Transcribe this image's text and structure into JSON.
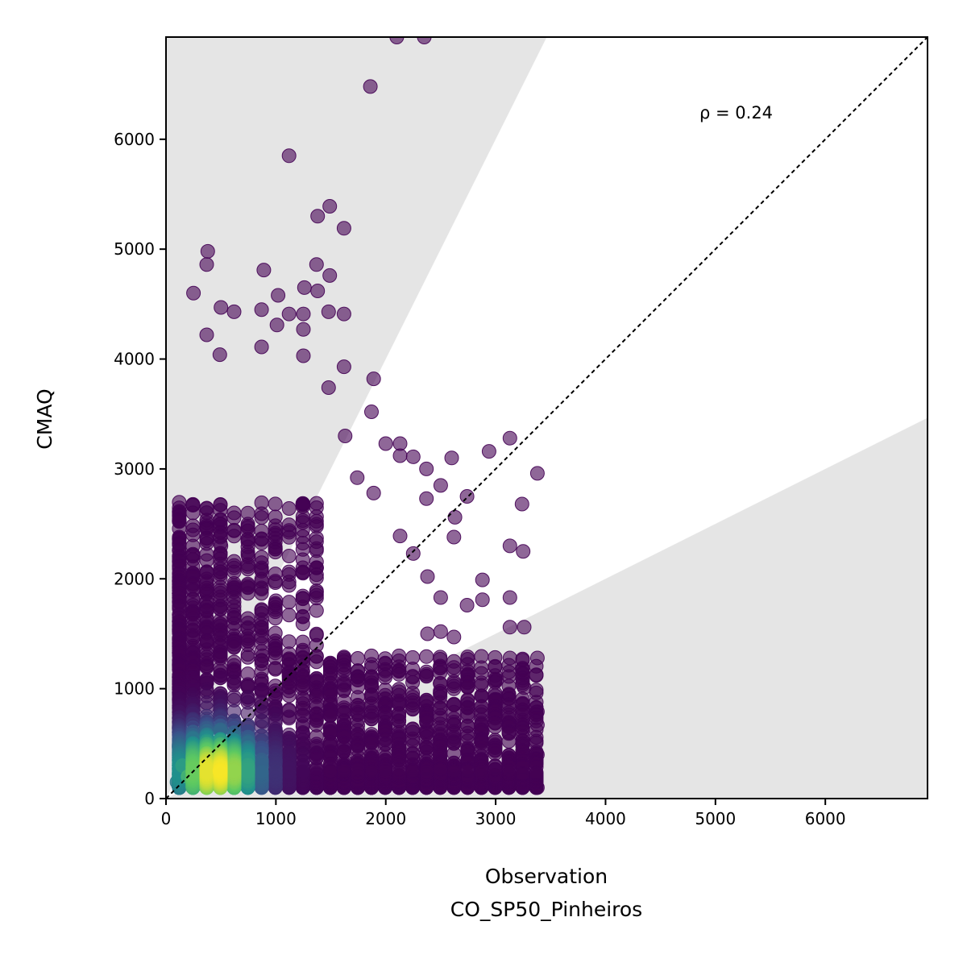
{
  "chart_data": {
    "type": "scatter",
    "title": "",
    "xlabel": "Observation",
    "xlabel_sub": "CO_SP50_Pinheiros",
    "ylabel": "CMAQ",
    "xlim": [
      0,
      6930
    ],
    "ylim": [
      0,
      6930
    ],
    "xticks": [
      "0",
      "1000",
      "2000",
      "3000",
      "4000",
      "5000",
      "6000"
    ],
    "yticks": [
      "0",
      "1000",
      "2000",
      "3000",
      "4000",
      "5000",
      "6000"
    ],
    "annotation": "ρ = 0.24",
    "reference_line": "1:1",
    "shaded_region": "outside factor-of-2 band",
    "colormap": "viridis",
    "grid": false,
    "point_samples": [
      [
        2100,
        6930
      ],
      [
        2350,
        6930
      ],
      [
        1860,
        6480
      ],
      [
        1120,
        5850
      ],
      [
        1490,
        5390
      ],
      [
        1380,
        5300
      ],
      [
        1620,
        5190
      ],
      [
        380,
        4980
      ],
      [
        370,
        4860
      ],
      [
        890,
        4810
      ],
      [
        1370,
        4860
      ],
      [
        1490,
        4760
      ],
      [
        1260,
        4650
      ],
      [
        1380,
        4620
      ],
      [
        250,
        4600
      ],
      [
        1020,
        4580
      ],
      [
        500,
        4470
      ],
      [
        620,
        4430
      ],
      [
        870,
        4450
      ],
      [
        1120,
        4410
      ],
      [
        1250,
        4410
      ],
      [
        1480,
        4430
      ],
      [
        1620,
        4410
      ],
      [
        1010,
        4310
      ],
      [
        1250,
        4270
      ],
      [
        370,
        4220
      ],
      [
        870,
        4110
      ],
      [
        490,
        4040
      ],
      [
        1250,
        4030
      ],
      [
        1620,
        3930
      ],
      [
        1890,
        3820
      ],
      [
        1480,
        3740
      ],
      [
        1870,
        3520
      ],
      [
        1630,
        3300
      ],
      [
        2000,
        3230
      ],
      [
        2130,
        3230
      ],
      [
        2130,
        3120
      ],
      [
        2250,
        3110
      ],
      [
        2370,
        3000
      ],
      [
        2600,
        3100
      ],
      [
        2940,
        3160
      ],
      [
        3130,
        3280
      ],
      [
        3380,
        2960
      ],
      [
        1740,
        2920
      ],
      [
        1890,
        2780
      ],
      [
        2500,
        2850
      ],
      [
        2370,
        2730
      ],
      [
        2740,
        2750
      ],
      [
        3240,
        2680
      ],
      [
        2630,
        2560
      ],
      [
        2130,
        2390
      ],
      [
        2620,
        2380
      ],
      [
        3130,
        2300
      ],
      [
        3250,
        2250
      ],
      [
        2250,
        2230
      ],
      [
        2380,
        2020
      ],
      [
        2880,
        1990
      ],
      [
        2500,
        1830
      ],
      [
        3130,
        1830
      ],
      [
        2880,
        1810
      ],
      [
        2740,
        1760
      ],
      [
        3130,
        1560
      ],
      [
        3260,
        1560
      ],
      [
        2620,
        1470
      ],
      [
        2500,
        1520
      ],
      [
        2380,
        1500
      ],
      [
        3130,
        1280
      ],
      [
        3380,
        1280
      ],
      [
        2750,
        1130
      ],
      [
        3010,
        1080
      ],
      [
        3260,
        1010
      ],
      [
        3380,
        790
      ],
      [
        3380,
        670
      ],
      [
        3010,
        900
      ],
      [
        2880,
        610
      ],
      [
        2500,
        620
      ],
      [
        3380,
        400
      ],
      [
        3250,
        260
      ],
      [
        3010,
        150
      ],
      [
        3380,
        100
      ],
      [
        3130,
        350
      ],
      [
        2750,
        400
      ],
      [
        2370,
        310
      ],
      [
        2000,
        500
      ],
      [
        1620,
        700
      ],
      [
        1250,
        900
      ],
      [
        1000,
        1800
      ],
      [
        880,
        1300
      ],
      [
        750,
        2200
      ],
      [
        620,
        2600
      ],
      [
        500,
        2300
      ],
      [
        370,
        1600
      ],
      [
        250,
        1200
      ],
      [
        120,
        900
      ],
      [
        250,
        600
      ],
      [
        370,
        300
      ],
      [
        490,
        250
      ],
      [
        620,
        400
      ],
      [
        750,
        500
      ],
      [
        880,
        700
      ],
      [
        1000,
        600
      ],
      [
        1120,
        800
      ],
      [
        1250,
        500
      ],
      [
        1370,
        400
      ],
      [
        1500,
        600
      ],
      [
        1750,
        300
      ],
      [
        2120,
        350
      ],
      [
        2620,
        250
      ],
      [
        2870,
        300
      ],
      [
        100,
        150
      ],
      [
        150,
        300
      ],
      [
        200,
        200
      ]
    ]
  }
}
